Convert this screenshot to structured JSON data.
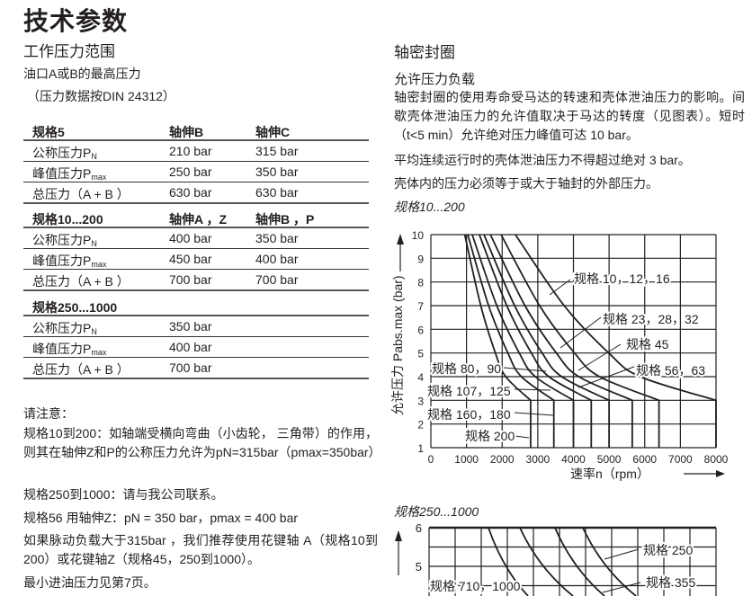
{
  "title": "技术参数",
  "left": {
    "section_title": "工作压力范围",
    "subtitle": "油口A或B的最高压力",
    "note": "（压力数据按DIN 24312）",
    "tables": [
      {
        "header": [
          "规格5",
          "轴伸B",
          "轴伸C"
        ],
        "rows": [
          {
            "label": "公称压力P",
            "sub": "N",
            "values": [
              "210 bar",
              "315 bar"
            ]
          },
          {
            "label": "峰值压力P",
            "sub": "max",
            "values": [
              "250 bar",
              "350 bar"
            ]
          },
          {
            "label": "总压力（A + B ）",
            "sub": "",
            "values": [
              "630 bar",
              "630 bar"
            ]
          }
        ]
      },
      {
        "header": [
          "规格10...200",
          "轴伸A ，Z",
          "轴伸B ，P"
        ],
        "rows": [
          {
            "label": "公称压力P",
            "sub": "N",
            "values": [
              "400 bar",
              "350 bar"
            ]
          },
          {
            "label": "峰值压力P",
            "sub": "max",
            "values": [
              "450 bar",
              "400 bar"
            ]
          },
          {
            "label": "总压力（A + B ）",
            "sub": "",
            "values": [
              "700 bar",
              "700 bar"
            ]
          }
        ]
      },
      {
        "header": [
          "规格250...1000",
          "",
          ""
        ],
        "rows": [
          {
            "label": "公称压力P",
            "sub": "N",
            "values": [
              "350 bar",
              ""
            ]
          },
          {
            "label": "峰值压力P",
            "sub": "max",
            "values": [
              "400 bar",
              ""
            ]
          },
          {
            "label": "总压力（A + B ）",
            "sub": "",
            "values": [
              "700 bar",
              ""
            ]
          }
        ]
      }
    ],
    "notes_title": "请注意：",
    "notes": [
      "规格10到200：如轴端受横向弯曲（小齿轮， 三角带）的作用，则其在轴伸Z和P的公称压力允许为pN=315bar（pmax=350bar）",
      "规格250到1000：请与我公司联系。",
      "规格56 用轴伸Z：pN = 350 bar，pmax = 400 bar",
      "如果脉动负载大于315bar ，我们推荐使用花键轴 A（规格10到200）或花键轴Z（规格45，250到1000）。",
      "最小进油压力见第7页。"
    ]
  },
  "right": {
    "section_title": "轴密封圈",
    "subsection_title": "允许压力负载",
    "paragraphs": [
      "轴密封圈的使用寿命受马达的转速和壳体泄油压力的影响。间歇壳体泄油压力的允许值取决于马达的转度（见图表）。短时（t<5 min）允许绝对压力峰值可达 10 bar。",
      "平均连续运行时的壳体泄油压力不得超过绝对 3 bar。",
      "壳体内的压力必须等于或大于轴封的外部压力。"
    ],
    "chart1_caption": "规格10...200",
    "chart2_caption": "规格250...1000"
  },
  "chart_data": [
    {
      "type": "line",
      "title": "",
      "xlabel": "速率n（rpm）",
      "ylabel": "允许压力 Pabs.max (bar)",
      "xlim": [
        0,
        8000
      ],
      "ylim": [
        1,
        10
      ],
      "xticks": [
        "0",
        "1000",
        "2000",
        "3000",
        "4000",
        "5000",
        "6000",
        "7000",
        "8000"
      ],
      "yticks": [
        "1",
        "2",
        "3",
        "4",
        "5",
        "6",
        "7",
        "8",
        "9",
        "10"
      ],
      "grid": true,
      "line_color": "#231f20",
      "series": [
        {
          "points": [
            [
              950,
              10
            ],
            [
              1400,
              7
            ],
            [
              1810,
              5
            ],
            [
              2100,
              4
            ],
            [
              2800,
              3
            ],
            [
              2800,
              1
            ]
          ]
        },
        {
          "points": [
            [
              1035,
              10
            ],
            [
              1620,
              7
            ],
            [
              2160,
              5
            ],
            [
              2540,
              4
            ],
            [
              3450,
              3
            ],
            [
              3450,
              1
            ]
          ]
        },
        {
          "points": [
            [
              1160,
              10
            ],
            [
              1850,
              7
            ],
            [
              2480,
              5
            ],
            [
              2930,
              4
            ],
            [
              4000,
              3
            ],
            [
              4000,
              1
            ]
          ]
        },
        {
          "points": [
            [
              1360,
              10
            ],
            [
              2130,
              7
            ],
            [
              2820,
              5
            ],
            [
              3310,
              4
            ],
            [
              4500,
              3
            ],
            [
              4500,
              1
            ]
          ]
        },
        {
          "points": [
            [
              1490,
              10
            ],
            [
              2350,
              7
            ],
            [
              3120,
              5
            ],
            [
              3670,
              4
            ],
            [
              5000,
              3
            ],
            [
              5000,
              1
            ]
          ]
        },
        {
          "points": [
            [
              1670,
              10
            ],
            [
              2640,
              7
            ],
            [
              3520,
              5
            ],
            [
              4150,
              4
            ],
            [
              5650,
              3
            ],
            [
              5650,
              1
            ]
          ]
        },
        {
          "points": [
            [
              1970,
              10
            ],
            [
              3050,
              7
            ],
            [
              4030,
              5
            ],
            [
              4730,
              4
            ],
            [
              6400,
              3
            ],
            [
              6400,
              1
            ]
          ]
        },
        {
          "points": [
            [
              2370,
              10
            ],
            [
              3740,
              7
            ],
            [
              4990,
              5
            ],
            [
              5870,
              4
            ],
            [
              8000,
              3
            ],
            [
              8000,
              1
            ]
          ]
        }
      ],
      "annotations": [
        "规格 10，12，16",
        "规格 23，28，32",
        "规格 45",
        "规格 56，63",
        "规格 80，90",
        "规格 107，125",
        "规格 160，180",
        "规格 200"
      ]
    },
    {
      "type": "line",
      "title": "",
      "yticks": [
        "6",
        "5"
      ],
      "grid": true,
      "annotations": [
        "规格 250",
        "规格 355",
        "规格 710，1000"
      ]
    }
  ]
}
